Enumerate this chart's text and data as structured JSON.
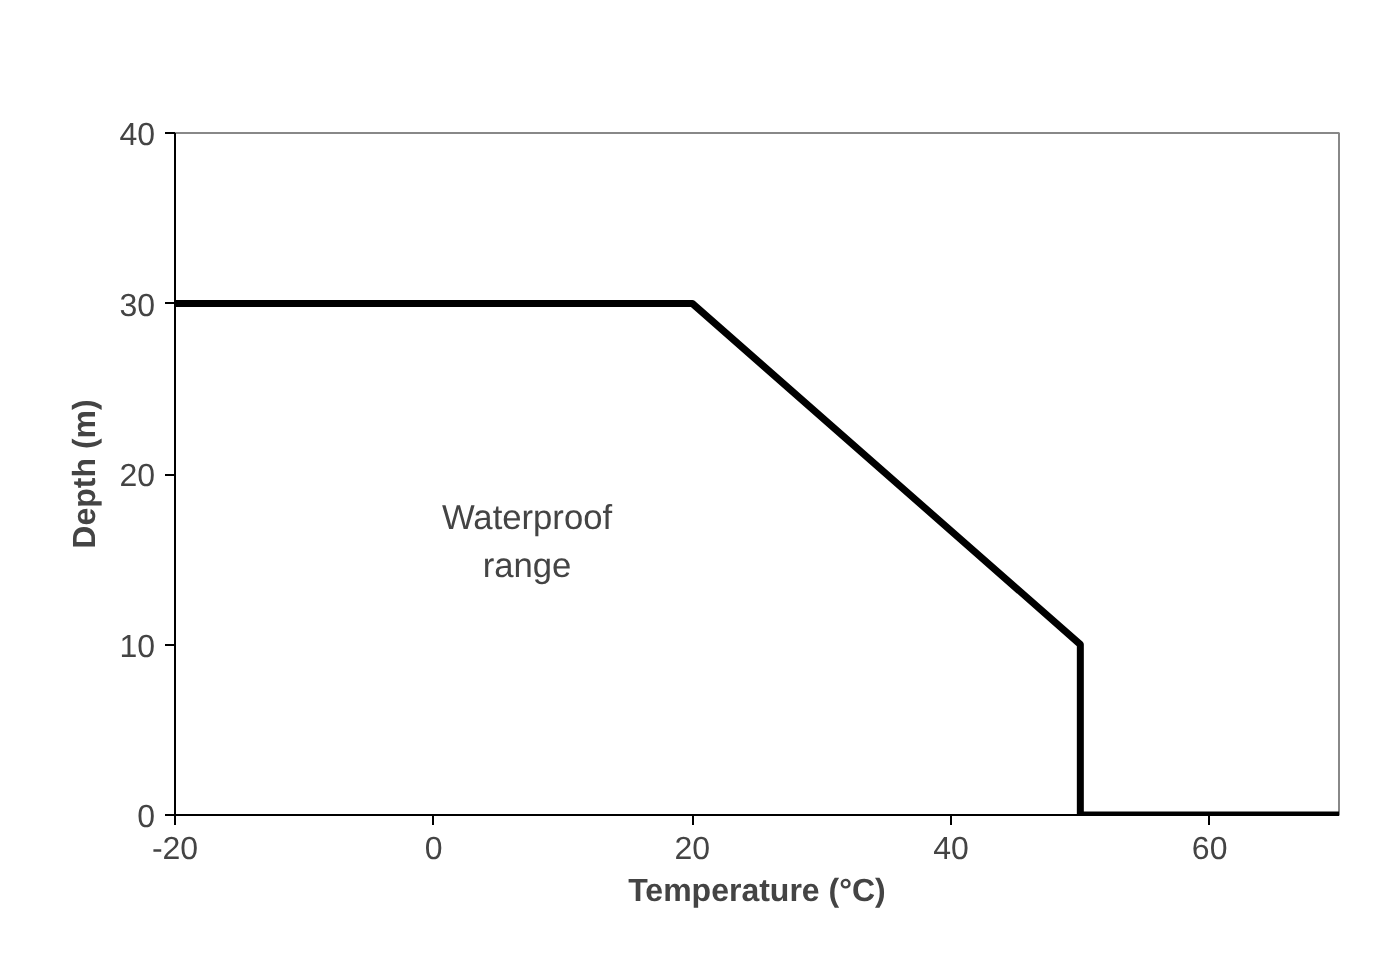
{
  "chart_data": {
    "type": "line",
    "xlabel": "Temperature (°C)",
    "ylabel": "Depth (m)",
    "x": [
      -20,
      20,
      50,
      50,
      70
    ],
    "series": [
      {
        "color": "#000000",
        "values": [
          30,
          30,
          10,
          0,
          0
        ]
      }
    ],
    "xlim": [
      -20,
      70
    ],
    "ylim": [
      0,
      40
    ],
    "xticks": [
      -20,
      0,
      20,
      40,
      60
    ],
    "yticks": [
      0,
      10,
      20,
      30,
      40
    ],
    "grid": false,
    "marker": "none",
    "line_style": "solid",
    "annotations": [
      "Waterproof\nrange"
    ]
  }
}
